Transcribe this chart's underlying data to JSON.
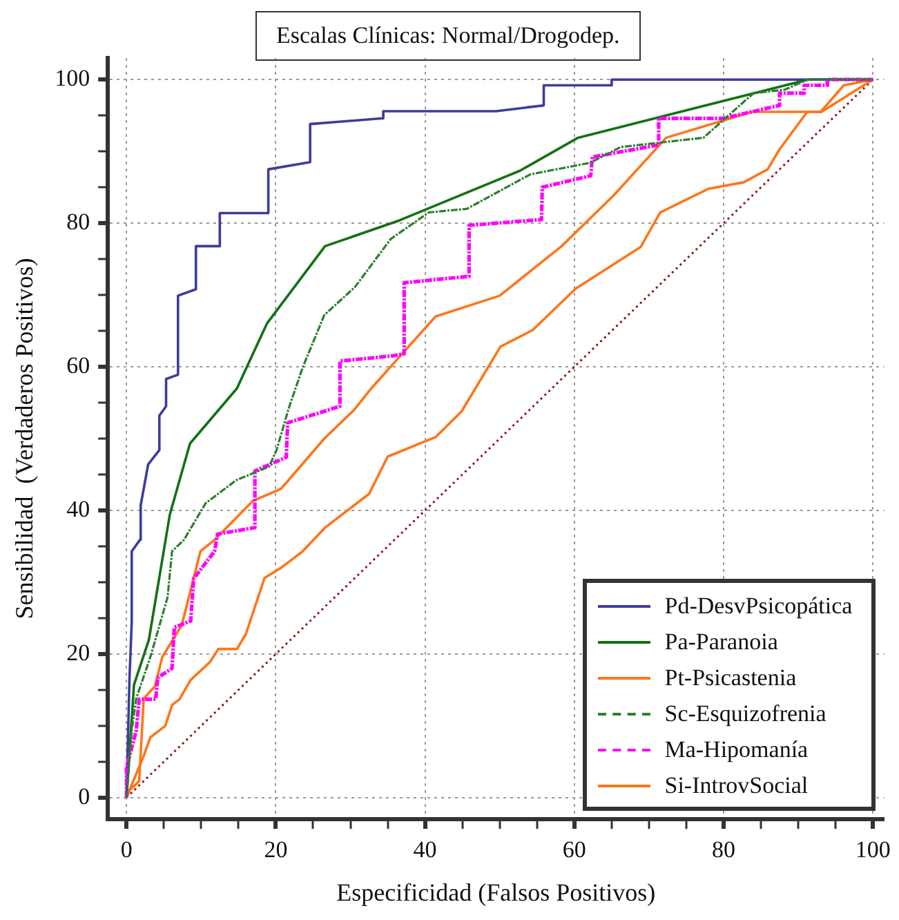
{
  "chart_data": {
    "type": "line",
    "title": "Escalas Clínicas: Normal/Drogodep.",
    "xlabel": "Especificidad (Falsos Positivos)",
    "ylabel": "Sensibilidad  (Verdaderos Positivos)",
    "xlim": [
      -2.5,
      101.5
    ],
    "ylim": [
      -3,
      103
    ],
    "xticks": [
      0,
      {
        "value": 5,
        "label": null
      },
      {
        "value": 10,
        "label": null
      },
      {
        "value": 15,
        "label": null
      },
      20,
      {
        "value": 25,
        "label": null
      },
      {
        "value": 30,
        "label": null
      },
      {
        "value": 35,
        "label": null
      },
      40,
      {
        "value": 45,
        "label": null
      },
      {
        "value": 50,
        "label": null
      },
      {
        "value": 55,
        "label": null
      },
      60,
      {
        "value": 65,
        "label": null
      },
      {
        "value": 70,
        "label": null
      },
      {
        "value": 75,
        "label": null
      },
      80,
      {
        "value": 85,
        "label": null
      },
      {
        "value": 90,
        "label": null
      },
      {
        "value": 95,
        "label": null
      },
      100
    ],
    "yticks": [
      0,
      {
        "value": 5,
        "label": null
      },
      {
        "value": 10,
        "label": null
      },
      {
        "value": 15,
        "label": null
      },
      20,
      {
        "value": 25,
        "label": null
      },
      {
        "value": 30,
        "label": null
      },
      {
        "value": 35,
        "label": null
      },
      40,
      {
        "value": 45,
        "label": null
      },
      {
        "value": 50,
        "label": null
      },
      {
        "value": 55,
        "label": null
      },
      60,
      {
        "value": 65,
        "label": null
      },
      {
        "value": 70,
        "label": null
      },
      {
        "value": 75,
        "label": null
      },
      80,
      {
        "value": 85,
        "label": null
      },
      {
        "value": 90,
        "label": null
      },
      {
        "value": 95,
        "label": null
      },
      100
    ],
    "grid": true,
    "legend": "bottom right",
    "marker": "none",
    "series": [
      {
        "name": "Pd-DesvPsicopática",
        "color": "#3c3c9c",
        "line_style": "solid",
        "x": [
          0,
          0.4,
          0.7,
          0.7,
          1.8,
          1.9,
          2.9,
          4.4,
          4.4,
          5.3,
          5.3,
          6.9,
          6.9,
          9.3,
          9.3,
          12.5,
          12.5,
          19,
          19,
          24.6,
          24.6,
          34.3,
          34.4,
          49.5,
          55.9,
          55.9,
          65,
          65,
          100
        ],
        "values": [
          0,
          16.7,
          24.4,
          34.3,
          35.9,
          40.7,
          46.4,
          48.4,
          53.2,
          54.5,
          58.3,
          58.9,
          69.9,
          70.8,
          76.8,
          76.8,
          81.4,
          81.4,
          87.5,
          88.5,
          93.8,
          94.6,
          95.6,
          95.6,
          96.4,
          99.2,
          99.2,
          100,
          100
        ]
      },
      {
        "name": "Pa-Paranoia",
        "color": "#137113",
        "line_style": "solid",
        "x": [
          0,
          1,
          3,
          5.8,
          8.5,
          14.8,
          18.8,
          26.6,
          36.6,
          52.7,
          60.5,
          91.3,
          100
        ],
        "values": [
          0,
          15.7,
          22,
          39.4,
          49.3,
          57,
          66,
          76.8,
          80.4,
          87.3,
          91.9,
          100,
          100
        ]
      },
      {
        "name": "Pt-Psicastenia",
        "color": "#ff7519",
        "line_style": "solid",
        "x": [
          0,
          0.4,
          1.7,
          2.3,
          3.8,
          4.8,
          7.4,
          9.9,
          11.8,
          16.9,
          20.7,
          26.5,
          30.5,
          32.8,
          41.4,
          50,
          58.3,
          65.3,
          72.3,
          83.8,
          93,
          96.1,
          100
        ],
        "values": [
          0,
          1,
          2.3,
          13.8,
          15.5,
          19.6,
          24,
          34.3,
          35.9,
          41.3,
          43,
          50,
          54,
          57,
          67,
          69.9,
          76.8,
          83.9,
          91.9,
          95.5,
          95.5,
          99.2,
          100
        ]
      },
      {
        "name": "Sc-Esquizofrenia",
        "color": "#2d802d",
        "line_style": "dashed",
        "x": [
          0,
          0.7,
          1.3,
          3.2,
          5.5,
          6.1,
          7.7,
          10.6,
          14.7,
          19.1,
          20.1,
          21.7,
          23.6,
          26.5,
          30.6,
          35.4,
          40.5,
          45.6,
          54.1,
          62.1,
          66.2,
          77.3,
          84,
          88.2,
          91.3,
          100
        ],
        "values": [
          0,
          9.4,
          13.8,
          19.6,
          27.9,
          34.3,
          35.9,
          41,
          44.2,
          46.1,
          48.4,
          54.1,
          59.9,
          67.2,
          71.1,
          77.8,
          81.5,
          82,
          86.8,
          88.4,
          90.6,
          91.9,
          98.1,
          98.6,
          100,
          100
        ]
      },
      {
        "name": "Ma-Hipomanía",
        "color": "#ff00ff",
        "line_style": "dashed",
        "x": [
          0,
          0,
          1.3,
          1.7,
          3.9,
          4.2,
          6.1,
          6.4,
          8.6,
          9,
          11.8,
          12.2,
          17.2,
          17.2,
          21.4,
          21.6,
          27.4,
          28.6,
          28.6,
          35.5,
          37.2,
          37.2,
          45.9,
          45.9,
          55.6,
          55.7,
          62.2,
          62.4,
          71.3,
          71.3,
          79.9,
          87.5,
          87.5,
          90.8,
          90.8,
          93.9,
          93.9,
          100
        ],
        "values": [
          0,
          4.2,
          9.3,
          13.7,
          13.7,
          16.7,
          18,
          23.7,
          24.6,
          30.5,
          34.3,
          36.7,
          37.6,
          45.5,
          47.4,
          52.2,
          54.1,
          54.5,
          60.8,
          61.5,
          61.8,
          71.7,
          72.6,
          79.7,
          80.5,
          85,
          86.6,
          89.2,
          90.9,
          94.6,
          94.6,
          96.4,
          98.1,
          98.1,
          99.2,
          99.2,
          100,
          100
        ]
      },
      {
        "name": "Si-IntrovSocial",
        "color": "#ff7519",
        "line_style": "solid",
        "x": [
          0,
          2.3,
          3.2,
          5.2,
          6.1,
          7.1,
          8.6,
          11.2,
          12.3,
          14.8,
          16,
          18.5,
          20.7,
          23.6,
          26.6,
          32.5,
          35,
          41.4,
          44.9,
          50.1,
          54.4,
          60.2,
          68.9,
          71.5,
          78,
          82.7,
          85.9,
          87.5,
          91.2,
          93.1,
          100
        ],
        "values": [
          0,
          5.8,
          8.4,
          10,
          12.9,
          13.7,
          16.4,
          18.9,
          20.7,
          20.7,
          22.8,
          30.6,
          32,
          34.3,
          37.6,
          42.3,
          47.5,
          50.2,
          53.8,
          62.8,
          65.1,
          70.9,
          76.7,
          81.5,
          84.8,
          85.7,
          87.5,
          90.3,
          95.5,
          95.5,
          100
        ]
      },
      {
        "color": "#8b1a1a",
        "line_style": "dotted",
        "x": [
          0,
          100
        ],
        "values": [
          0,
          100
        ]
      }
    ]
  }
}
